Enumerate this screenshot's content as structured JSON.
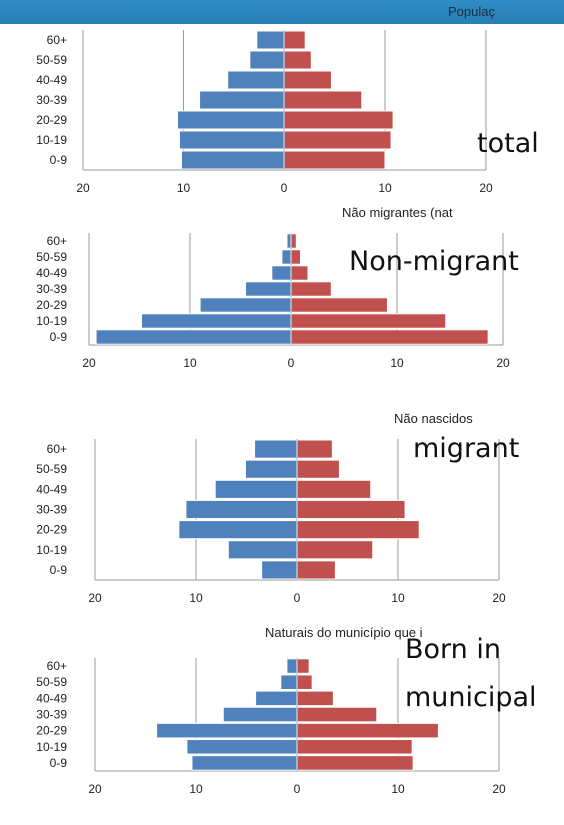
{
  "header": {
    "title": "Populaç"
  },
  "overlay_labels": {
    "total": "total",
    "non_migrant": "Non-migrant",
    "migrant": "migrant",
    "born_in": "Born in",
    "municipal": "municipal"
  },
  "colors": {
    "male": "#4f81bd",
    "female": "#c0504d",
    "grid": "#9a9a9a",
    "bar_edge": "#ffffff"
  },
  "chart_data": [
    {
      "type": "bar",
      "title": "",
      "categories": [
        "60+",
        "50-59",
        "40-49",
        "30-39",
        "20-29",
        "10-19",
        "0-9"
      ],
      "series": [
        {
          "values": [
            2.7,
            3.4,
            5.6,
            8.4,
            10.6,
            10.4,
            10.2
          ]
        },
        {
          "values": [
            2.1,
            2.7,
            4.7,
            7.7,
            10.8,
            10.6,
            10.0
          ]
        }
      ],
      "xlim": [
        -20,
        20
      ],
      "xticks": [
        "20",
        "10",
        "0",
        "10",
        "20"
      ]
    },
    {
      "type": "bar",
      "title": "Não migrantes (nat",
      "categories": [
        "60+",
        "50-59",
        "40-49",
        "30-39",
        "20-29",
        "10-19",
        "0-9"
      ],
      "series": [
        {
          "values": [
            0.4,
            0.9,
            1.9,
            4.5,
            9.0,
            14.8,
            19.3
          ]
        },
        {
          "values": [
            0.5,
            0.9,
            1.6,
            3.8,
            9.1,
            14.6,
            18.6
          ]
        }
      ],
      "xlim": [
        -20,
        20
      ],
      "xticks": [
        "20",
        "10",
        "0",
        "10",
        "20"
      ]
    },
    {
      "type": "bar",
      "title": "Não nascidos",
      "categories": [
        "60+",
        "50-59",
        "40-49",
        "30-39",
        "20-29",
        "10-19",
        "0-9"
      ],
      "series": [
        {
          "values": [
            4.2,
            5.1,
            8.1,
            11.0,
            11.7,
            6.8,
            3.5
          ]
        },
        {
          "values": [
            3.5,
            4.2,
            7.3,
            10.7,
            12.1,
            7.5,
            3.8
          ]
        }
      ],
      "xlim": [
        -20,
        20
      ],
      "xticks": [
        "20",
        "10",
        "0",
        "10",
        "20"
      ]
    },
    {
      "type": "bar",
      "title": "Naturais do município que i",
      "categories": [
        "60+",
        "50-59",
        "40-49",
        "30-39",
        "20-29",
        "10-19",
        "0-9"
      ],
      "series": [
        {
          "values": [
            1.0,
            1.6,
            4.1,
            7.3,
            13.9,
            10.9,
            10.4
          ]
        },
        {
          "values": [
            1.2,
            1.5,
            3.6,
            7.9,
            14.0,
            11.4,
            11.5
          ]
        }
      ],
      "xlim": [
        -20,
        20
      ],
      "xticks": [
        "20",
        "10",
        "0",
        "10",
        "20"
      ]
    }
  ]
}
